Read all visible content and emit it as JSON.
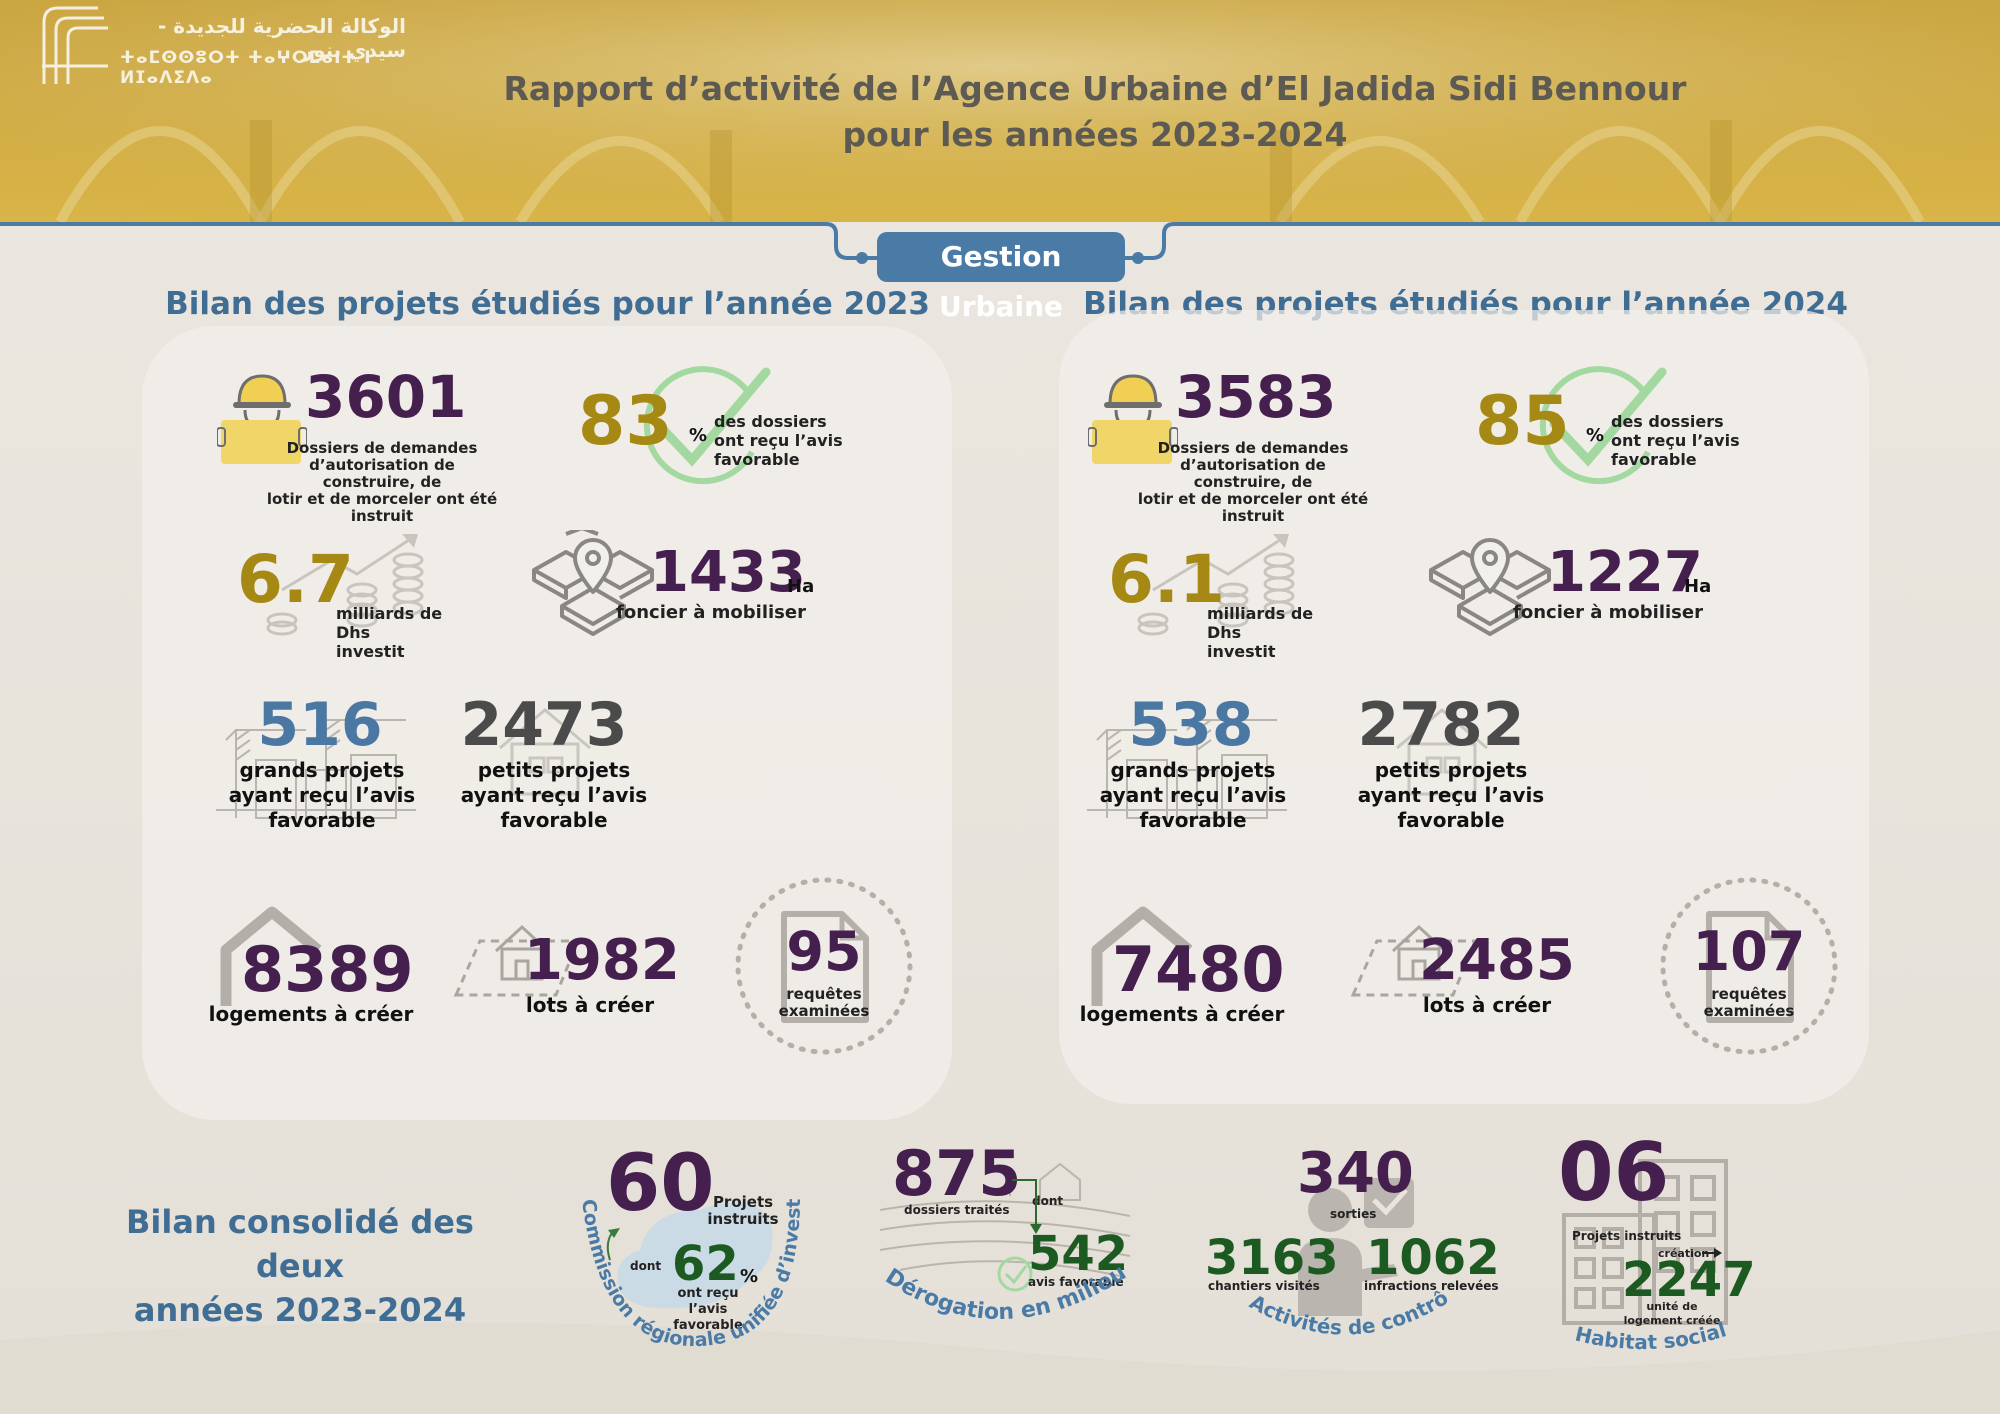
{
  "header": {
    "org_arabic": "الوكالة الحضرية للجديدة - سيدي بنور",
    "org_tifinagh": "ⵜⴰⵎⵙⵙⵓⵔⵜ ⵜⴰⵖⵔⵎⴰⵏⵜ ⵏ ⵍⵊⴰⴷⵉⴷⴰ",
    "title_line1": "Rapport d’activité de l’Agence Urbaine d’El Jadida Sidi Bennour",
    "title_line2": "pour les années 2023-2024"
  },
  "section_badge": "Gestion Urbaine",
  "colors": {
    "teal": "#3f6d93",
    "purple": "#45204f",
    "gold": "#a68914",
    "green": "#1c5a22",
    "badge": "#4a7aa6"
  },
  "panels": [
    {
      "heading": "Bilan des projets étudiés pour l’année 2023",
      "dossiers": {
        "value": "3601",
        "label_line1": "Dossiers de demandes",
        "label_line2": "d’autorisation de construire, de",
        "label_line3": "lotir et de morceler ont été instruit"
      },
      "favorable": {
        "value": "83",
        "unit": "%",
        "label_line1": "des dossiers",
        "label_line2": "ont reçu l’avis",
        "label_line3": "favorable"
      },
      "invest": {
        "value": "6.7",
        "label_line1": "milliards de Dhs",
        "label_line2": "investit"
      },
      "foncier": {
        "value": "1433",
        "unit": "Ha",
        "label": "foncier à mobiliser"
      },
      "grands": {
        "value": "516",
        "label_line1": "grands projets",
        "label_line2": "ayant reçu l’avis",
        "label_line3": "favorable"
      },
      "petits": {
        "value": "2473",
        "label_line1": "petits projets",
        "label_line2": "ayant reçu l’avis",
        "label_line3": "favorable"
      },
      "logements": {
        "value": "8389",
        "label": "logements à créer"
      },
      "lots": {
        "value": "1982",
        "label": "lots à créer"
      },
      "requetes": {
        "value": "95",
        "label_line1": "requêtes",
        "label_line2": "examinées"
      }
    },
    {
      "heading": "Bilan des projets étudiés pour l’année 2024",
      "dossiers": {
        "value": "3583",
        "label_line1": "Dossiers de demandes",
        "label_line2": "d’autorisation de construire, de",
        "label_line3": "lotir et de morceler ont été instruit"
      },
      "favorable": {
        "value": "85",
        "unit": "%",
        "label_line1": "des dossiers",
        "label_line2": "ont reçu l’avis",
        "label_line3": "favorable"
      },
      "invest": {
        "value": "6.1",
        "label_line1": "milliards de Dhs",
        "label_line2": "investit"
      },
      "foncier": {
        "value": "1227",
        "unit": "Ha",
        "label": "foncier à mobiliser"
      },
      "grands": {
        "value": "538",
        "label_line1": "grands projets",
        "label_line2": "ayant reçu l’avis",
        "label_line3": "favorable"
      },
      "petits": {
        "value": "2782",
        "label_line1": "petits projets",
        "label_line2": "ayant reçu l’avis",
        "label_line3": "favorable"
      },
      "logements": {
        "value": "7480",
        "label": "logements à créer"
      },
      "lots": {
        "value": "2485",
        "label": "lots à créer"
      },
      "requetes": {
        "value": "107",
        "label_line1": "requêtes",
        "label_line2": "examinées"
      }
    }
  ],
  "consolidated": {
    "heading_line1": "Bilan consolidé des deux",
    "heading_line2": "années 2023-2024",
    "crui": {
      "value": "60",
      "label_line1": "Projets",
      "label_line2": "instruits",
      "dont": "dont",
      "fav_value": "62",
      "fav_unit": "%",
      "fav_line1": "ont reçu l’avis",
      "fav_line2": "favorable",
      "arc_text": "Commission régionale unifiée d’investissement"
    },
    "derogation": {
      "value": "875",
      "label": "dossiers traités",
      "dont": "dont",
      "fav_value": "542",
      "fav_label": "avis favorable",
      "arc_text": "Dérogation en milieu rural"
    },
    "controle": {
      "sorties_value": "340",
      "sorties_label": "sorties",
      "chantiers_value": "3163",
      "chantiers_label": "chantiers visités",
      "infractions_value": "1062",
      "infractions_label": "infractions relevées",
      "arc_text": "Activités de contrôle"
    },
    "habitat": {
      "value": "06",
      "label": "Projets instruits",
      "creation": "création",
      "units_value": "2247",
      "units_line1": "unité de",
      "units_line2": "logement créée",
      "caption": "Habitat social"
    }
  }
}
